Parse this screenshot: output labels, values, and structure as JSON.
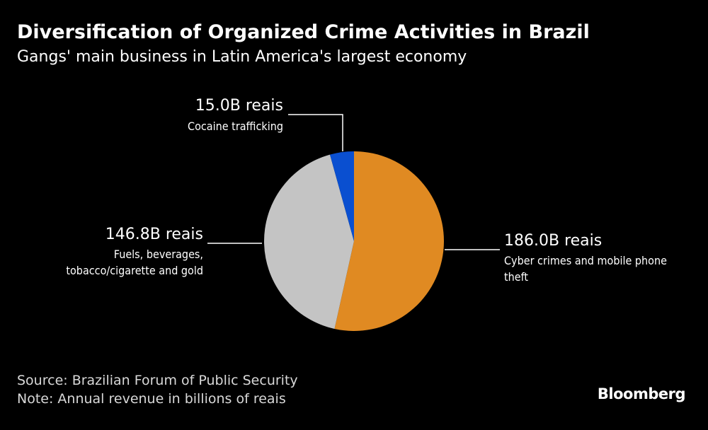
{
  "title": "Diversification of Organized Crime Activities in Brazil",
  "subtitle": "Gangs' main business in Latin America's largest economy",
  "chart_data": {
    "type": "pie",
    "unit": "billions of reais",
    "slices": [
      {
        "value": 186.0,
        "value_label": "186.0B reais",
        "label_lines": [
          "Cyber crimes and mobile phone",
          "theft"
        ],
        "color": "#e08a22"
      },
      {
        "value": 146.8,
        "value_label": "146.8B reais",
        "label_lines": [
          "Fuels, beverages,",
          "tobacco/cigarette and gold"
        ],
        "color": "#c4c4c4"
      },
      {
        "value": 15.0,
        "value_label": "15.0B reais",
        "label_lines": [
          "Cocaine trafficking"
        ],
        "color": "#0a4fd0"
      }
    ]
  },
  "footer": {
    "source": "Source: Brazilian Forum of Public Security",
    "note": "Note: Annual revenue in billions of reais"
  },
  "brand": "Bloomberg"
}
